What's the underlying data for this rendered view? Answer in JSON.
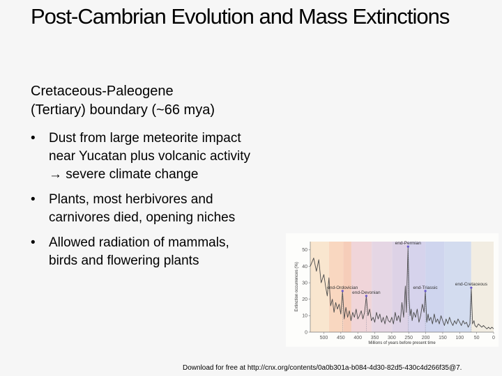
{
  "slide": {
    "title": "Post-Cambrian Evolution and Mass Extinctions",
    "subheading_line1": "Cretaceous-Paleogene",
    "subheading_line2": "(Tertiary) boundary (~66 mya)",
    "bullets": [
      {
        "line1": "Dust from large meteorite impact",
        "line2": "near Yucatan plus volcanic activity",
        "line3": "→ severe climate change"
      },
      {
        "line1": "Plants, most herbivores and",
        "line2": "carnivores died, opening niches"
      },
      {
        "line1": "Allowed radiation of mammals,",
        "line2": "birds and flowering plants"
      }
    ],
    "credit": "Download for free at http://cnx.org/contents/0a0b301a-b084-4d30-82d5-430c4d266f35@7."
  },
  "chart_data": {
    "type": "line",
    "xlabel": "Millions of years before present time",
    "ylabel": "Extinction occurrences (%)",
    "xlim": [
      540,
      0
    ],
    "ylim": [
      0,
      55
    ],
    "x_ticks": [
      "500",
      "450",
      "400",
      "350",
      "300",
      "250",
      "200",
      "150",
      "100",
      "50",
      "0"
    ],
    "y_ticks": [
      "0",
      "10",
      "20",
      "30",
      "40",
      "50"
    ],
    "events": [
      {
        "label": "end-Ordovician",
        "x": 445,
        "y": 25
      },
      {
        "label": "end-Devonian",
        "x": 375,
        "y": 22
      },
      {
        "label": "end-Permian",
        "x": 252,
        "y": 52
      },
      {
        "label": "end-Triassic",
        "x": 201,
        "y": 25
      },
      {
        "label": "end-Cretaceous",
        "x": 66,
        "y": 27
      }
    ],
    "bands": [
      {
        "from": 540,
        "to": 485,
        "color": "#f9e6cf"
      },
      {
        "from": 485,
        "to": 443,
        "color": "#f9d7c0"
      },
      {
        "from": 443,
        "to": 419,
        "color": "#f6cdb9"
      },
      {
        "from": 419,
        "to": 359,
        "color": "#f0d5d9"
      },
      {
        "from": 359,
        "to": 299,
        "color": "#e5d6e4"
      },
      {
        "from": 299,
        "to": 252,
        "color": "#ddd2e6"
      },
      {
        "from": 252,
        "to": 201,
        "color": "#d6d3ec"
      },
      {
        "from": 201,
        "to": 145,
        "color": "#cfd5ee"
      },
      {
        "from": 145,
        "to": 66,
        "color": "#d3dcef"
      },
      {
        "from": 66,
        "to": 0,
        "color": "#f2ede2"
      }
    ],
    "series": [
      {
        "x": [
          540,
          530,
          522,
          515,
          508,
          500,
          495,
          490,
          485,
          480,
          475,
          470,
          465,
          460,
          455,
          450,
          445,
          440,
          435,
          430,
          425,
          420,
          415,
          410,
          405,
          400,
          395,
          390,
          385,
          380,
          375,
          370,
          365,
          360,
          355,
          350,
          345,
          340,
          335,
          330,
          325,
          320,
          315,
          310,
          305,
          300,
          295,
          290,
          285,
          280,
          275,
          270,
          265,
          260,
          257,
          255,
          252,
          249,
          246,
          243,
          240,
          235,
          230,
          225,
          220,
          215,
          210,
          205,
          201,
          197,
          193,
          190,
          185,
          180,
          175,
          170,
          165,
          160,
          155,
          150,
          145,
          140,
          135,
          130,
          125,
          120,
          115,
          110,
          105,
          100,
          95,
          90,
          85,
          80,
          75,
          70,
          66,
          62,
          58,
          55,
          50,
          45,
          40,
          35,
          30,
          25,
          20,
          15,
          10,
          5,
          0
        ],
        "y": [
          40,
          45,
          37,
          44,
          30,
          35,
          28,
          22,
          33,
          16,
          20,
          12,
          18,
          14,
          17,
          11,
          25,
          8,
          15,
          9,
          13,
          7,
          12,
          9,
          14,
          8,
          10,
          13,
          8,
          12,
          22,
          10,
          14,
          7,
          9,
          6,
          12,
          8,
          11,
          6,
          9,
          5,
          10,
          7,
          6,
          9,
          5,
          12,
          7,
          10,
          6,
          18,
          9,
          28,
          12,
          30,
          52,
          20,
          10,
          14,
          7,
          12,
          9,
          14,
          6,
          10,
          17,
          12,
          25,
          6,
          11,
          7,
          9,
          5,
          11,
          6,
          8,
          5,
          10,
          7,
          4,
          8,
          5,
          9,
          6,
          4,
          7,
          5,
          8,
          6,
          4,
          7,
          5,
          6,
          3,
          5,
          27,
          5,
          7,
          4,
          3,
          5,
          4,
          3,
          4,
          3,
          2,
          3,
          2,
          3,
          2
        ]
      }
    ]
  }
}
